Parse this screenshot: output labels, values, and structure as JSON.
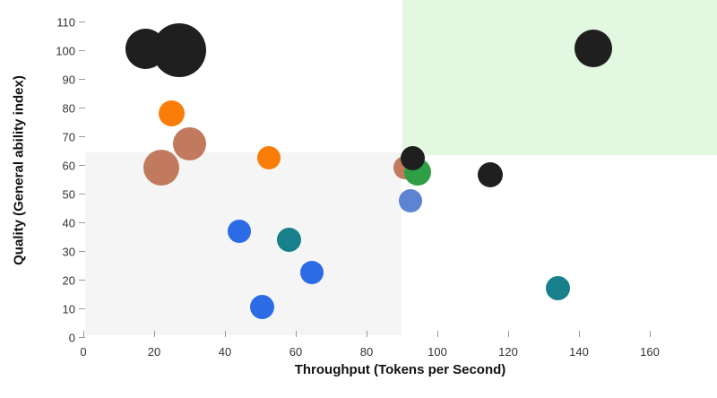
{
  "chart_data": {
    "type": "scatter",
    "title": "",
    "xlabel": "Throughput (Tokens per Second)",
    "ylabel": "Quality (General ability index)",
    "xlim": [
      0,
      179
    ],
    "ylim": [
      0,
      117.5
    ],
    "x_ticks": [
      0,
      20,
      40,
      60,
      80,
      100,
      120,
      140,
      160
    ],
    "y_ticks": [
      0,
      10,
      20,
      30,
      40,
      50,
      60,
      70,
      80,
      90,
      100,
      110
    ],
    "grid": false,
    "legend": "none",
    "colors": {
      "black": "#1f1f1f",
      "orange": "#fa7d09",
      "sienna": "#c17a5e",
      "blue": "#2b6be6",
      "cornflower": "#5c84d3",
      "teal": "#17808a",
      "green": "#2f9e44",
      "region_gray": "#f5f5f5",
      "region_green": "#e2f8e1"
    },
    "regions": [
      {
        "name": "lower-left-gray-zone",
        "color_key": "region_gray",
        "x": [
          0.5,
          90
        ],
        "y": [
          0.6,
          64.4
        ]
      },
      {
        "name": "upper-right-green-zone",
        "color_key": "region_green",
        "x": [
          90.2,
          179
        ],
        "y": [
          63.4,
          117.5
        ]
      }
    ],
    "points": [
      {
        "color": "black",
        "x": 17.5,
        "y": 100.5,
        "r": 22.5
      },
      {
        "color": "black",
        "x": 27,
        "y": 100,
        "r": 30
      },
      {
        "color": "orange",
        "x": 25,
        "y": 78,
        "r": 14.5
      },
      {
        "color": "sienna",
        "x": 30,
        "y": 67.5,
        "r": 18.5
      },
      {
        "color": "sienna",
        "x": 22,
        "y": 59,
        "r": 20
      },
      {
        "color": "orange",
        "x": 52.5,
        "y": 62.5,
        "r": 13
      },
      {
        "color": "blue",
        "x": 44,
        "y": 37,
        "r": 13
      },
      {
        "color": "teal",
        "x": 58,
        "y": 34,
        "r": 13.5
      },
      {
        "color": "blue",
        "x": 64.5,
        "y": 22.5,
        "r": 13
      },
      {
        "color": "blue",
        "x": 50.5,
        "y": 10.5,
        "r": 13.5
      },
      {
        "color": "sienna",
        "x": 91,
        "y": 59,
        "r": 13
      },
      {
        "color": "green",
        "x": 94.5,
        "y": 57.5,
        "r": 15
      },
      {
        "color": "black",
        "x": 93,
        "y": 62.5,
        "r": 13.5
      },
      {
        "color": "cornflower",
        "x": 92.5,
        "y": 47.5,
        "r": 13
      },
      {
        "color": "black",
        "x": 115,
        "y": 56.5,
        "r": 14
      },
      {
        "color": "black",
        "x": 144,
        "y": 100.5,
        "r": 21
      },
      {
        "color": "teal",
        "x": 134,
        "y": 17,
        "r": 13.5
      }
    ]
  }
}
